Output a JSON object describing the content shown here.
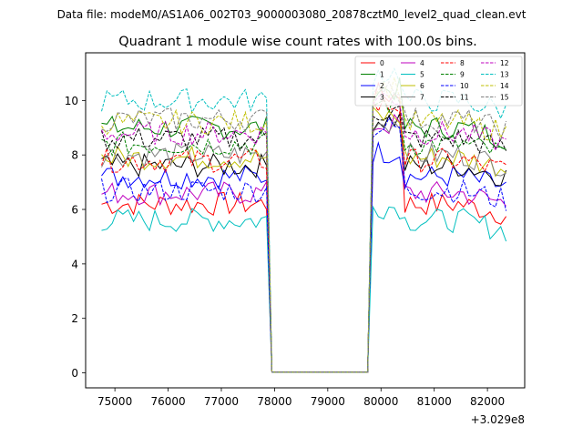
{
  "chart_data": {
    "type": "line",
    "suptitle": "Data file: modeM0/AS1A06_002T03_9000003080_20878cztM0_level2_quad_clean.evt",
    "title": "Quadrant 1 module wise count rates with 100.0s bins.",
    "xlabel": "",
    "ylabel": "",
    "x_offset_label": "+3.029e8",
    "xlim": [
      74450,
      82700
    ],
    "ylim": [
      -0.55,
      11.75
    ],
    "x_ticks": [
      75000,
      76000,
      77000,
      78000,
      79000,
      80000,
      81000,
      82000
    ],
    "x_tick_labels": [
      "75000",
      "76000",
      "77000",
      "78000",
      "79000",
      "80000",
      "81000",
      "82000"
    ],
    "y_ticks": [
      0,
      2,
      4,
      6,
      8,
      10
    ],
    "y_tick_labels": [
      "0",
      "2",
      "4",
      "6",
      "8",
      "10"
    ],
    "grid": false,
    "legend_position": "top-right",
    "segments": [
      {
        "start": 74750,
        "end": 77850
      },
      {
        "start": 77950,
        "end": 79750
      },
      {
        "start": 79850,
        "end": 80350
      },
      {
        "start": 80450,
        "end": 80650
      },
      {
        "start": 80750,
        "end": 82350
      }
    ],
    "series": [
      {
        "name": "0",
        "color": "#ff0000",
        "dash": "solid",
        "level": 6.2,
        "peak": 10.2
      },
      {
        "name": "1",
        "color": "#008000",
        "dash": "solid",
        "level": 9.0,
        "peak": 10.4
      },
      {
        "name": "2",
        "color": "#0000ff",
        "dash": "solid",
        "level": 7.2,
        "peak": 8.1
      },
      {
        "name": "3",
        "color": "#000000",
        "dash": "solid",
        "level": 7.6,
        "peak": 9.3
      },
      {
        "name": "4",
        "color": "#bf00bf",
        "dash": "solid",
        "level": 6.6,
        "peak": 9.1
      },
      {
        "name": "5",
        "color": "#00bfbf",
        "dash": "solid",
        "level": 5.6,
        "peak": 6.1
      },
      {
        "name": "6",
        "color": "#bfbf00",
        "dash": "solid",
        "level": 7.9,
        "peak": 9.4
      },
      {
        "name": "7",
        "color": "#808080",
        "dash": "solid",
        "level": 8.0,
        "peak": 9.2
      },
      {
        "name": "8",
        "color": "#ff0000",
        "dash": "dashed",
        "level": 7.8,
        "peak": 9.8
      },
      {
        "name": "9",
        "color": "#008000",
        "dash": "dashed",
        "level": 8.4,
        "peak": 9.9
      },
      {
        "name": "10",
        "color": "#0000ff",
        "dash": "dashed",
        "level": 6.7,
        "peak": 9.0
      },
      {
        "name": "11",
        "color": "#000000",
        "dash": "dashed",
        "level": 8.6,
        "peak": 9.6
      },
      {
        "name": "12",
        "color": "#bf00bf",
        "dash": "dashed",
        "level": 8.8,
        "peak": 10.1
      },
      {
        "name": "13",
        "color": "#00bfbf",
        "dash": "dashed",
        "level": 10.0,
        "peak": 11.0
      },
      {
        "name": "14",
        "color": "#bfbf00",
        "dash": "dashed",
        "level": 9.2,
        "peak": 10.5
      },
      {
        "name": "15",
        "color": "#808080",
        "dash": "dashed",
        "level": 9.3,
        "peak": 10.6
      }
    ]
  }
}
